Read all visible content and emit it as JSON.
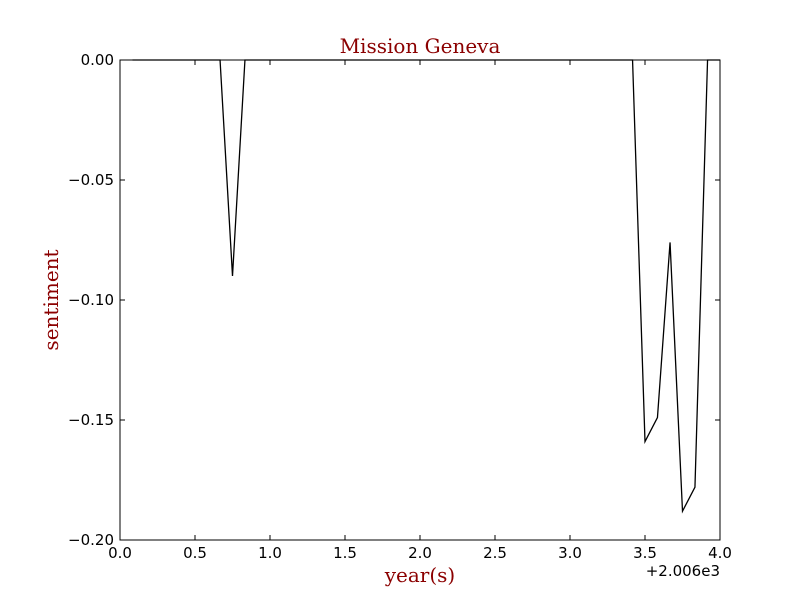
{
  "chart_data": {
    "type": "line",
    "title": "Mission Geneva",
    "xlabel": "year(s)",
    "ylabel": "sentiment",
    "x_offset_label": "+2.006e3",
    "xlim": [
      0.0,
      4.0
    ],
    "ylim": [
      -0.2,
      0.0
    ],
    "x_ticks": [
      "0.0",
      "0.5",
      "1.0",
      "1.5",
      "2.0",
      "2.5",
      "3.0",
      "3.5",
      "4.0"
    ],
    "y_ticks": [
      "0.00",
      "−0.05",
      "−0.10",
      "−0.15",
      "−0.20"
    ],
    "grid": false,
    "series": [
      {
        "color": "#000000",
        "x": [
          0.083,
          0.167,
          0.25,
          0.333,
          0.417,
          0.5,
          0.583,
          0.667,
          0.75,
          0.833,
          0.917,
          1.0,
          1.083,
          1.167,
          1.25,
          1.333,
          1.417,
          1.5,
          1.583,
          1.667,
          1.75,
          1.833,
          1.917,
          2.0,
          2.083,
          2.167,
          2.25,
          2.333,
          2.417,
          2.5,
          2.583,
          2.667,
          2.75,
          2.833,
          2.917,
          3.0,
          3.083,
          3.167,
          3.25,
          3.333,
          3.417,
          3.5,
          3.583,
          3.667,
          3.75,
          3.833,
          3.917,
          4.0
        ],
        "y": [
          0,
          0,
          0,
          0,
          0,
          0,
          0,
          0,
          -0.09,
          0,
          0,
          0,
          0,
          0,
          0,
          0,
          0,
          0,
          0,
          0,
          0,
          0,
          0,
          0,
          0,
          0,
          0,
          0,
          0,
          0,
          0,
          0,
          0,
          0,
          0,
          0,
          0,
          0,
          0,
          0,
          0,
          -0.159,
          -0.149,
          -0.076,
          -0.188,
          -0.178,
          0,
          0
        ]
      }
    ]
  }
}
